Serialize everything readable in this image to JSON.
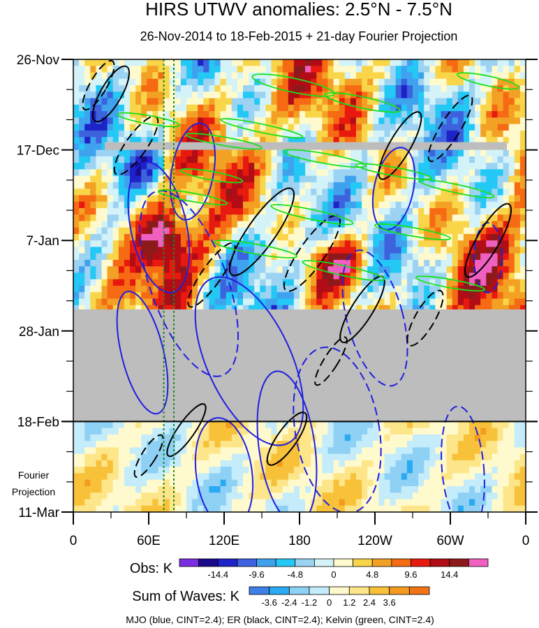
{
  "title": "HIRS UTWV anomalies: 2.5°N - 7.5°N",
  "subtitle": "26-Nov-2014 to 18-Feb-2015 + 21-day Fourier Projection",
  "side_label_line1": "Fourier",
  "side_label_line2": "Projection",
  "footnote": "MJO (blue, CINT=2.4); ER (black, CINT=2.4); Kelvin (green, CINT=2.4)",
  "colors": {
    "missing": "#bdbdbd",
    "mjo": "#1f1fe0",
    "er": "#000000",
    "kelvin": "#19e019",
    "marker_lines": "#1f8a1f"
  },
  "chart_data": {
    "type": "heatmap",
    "x_axis": {
      "label": "",
      "range_deg_east": [
        0,
        360
      ],
      "ticks": [
        {
          "lon": 0,
          "label": "0"
        },
        {
          "lon": 60,
          "label": "60E"
        },
        {
          "lon": 120,
          "label": "120E"
        },
        {
          "lon": 180,
          "label": "180"
        },
        {
          "lon": 240,
          "label": "120W"
        },
        {
          "lon": 300,
          "label": "60W"
        },
        {
          "lon": 360,
          "label": "0"
        }
      ]
    },
    "y_axis": {
      "label": "",
      "range_days": [
        0,
        105
      ],
      "ticks": [
        {
          "day": 0,
          "label": "26-Nov"
        },
        {
          "day": 21,
          "label": "17-Dec"
        },
        {
          "day": 42,
          "label": "7-Jan"
        },
        {
          "day": 63,
          "label": "28-Jan"
        },
        {
          "day": 84,
          "label": "18-Feb"
        },
        {
          "day": 105,
          "label": "11-Mar"
        }
      ],
      "projection_start_day": 84,
      "observation_end_day": 58
    },
    "marker_longitudes": [
      72,
      80
    ],
    "obs_colorbar": {
      "label": "Obs: K",
      "colors": [
        "#7b2ee0",
        "#1a0b8c",
        "#1e23c8",
        "#3c62de",
        "#3fa2ef",
        "#23c8f5",
        "#9dd3f2",
        "#d3f3f9",
        "#fffacd",
        "#f9d54a",
        "#f3a125",
        "#f66a13",
        "#e81a0f",
        "#b20d16",
        "#8c1a1a",
        "#f060c0"
      ],
      "labels": [
        "-14.4",
        "-9.6",
        "-4.8",
        "0",
        "4.8",
        "9.6",
        "14.4"
      ],
      "label_after_index": [
        2,
        4,
        6,
        8,
        10,
        12,
        14
      ]
    },
    "waves_colorbar": {
      "label": "Sum of Waves: K",
      "colors": [
        "#3f7fe8",
        "#2aaaf2",
        "#8fd0f5",
        "#c4ecfa",
        "#fffacd",
        "#fde58a",
        "#f8c13a",
        "#f39a1f",
        "#f07415"
      ],
      "labels": [
        "-3.6",
        "-2.4",
        "-1.2",
        "0",
        "1.2",
        "2.4",
        "3.6"
      ],
      "label_after_index": [
        1,
        2,
        3,
        4,
        5,
        6,
        7
      ]
    }
  }
}
